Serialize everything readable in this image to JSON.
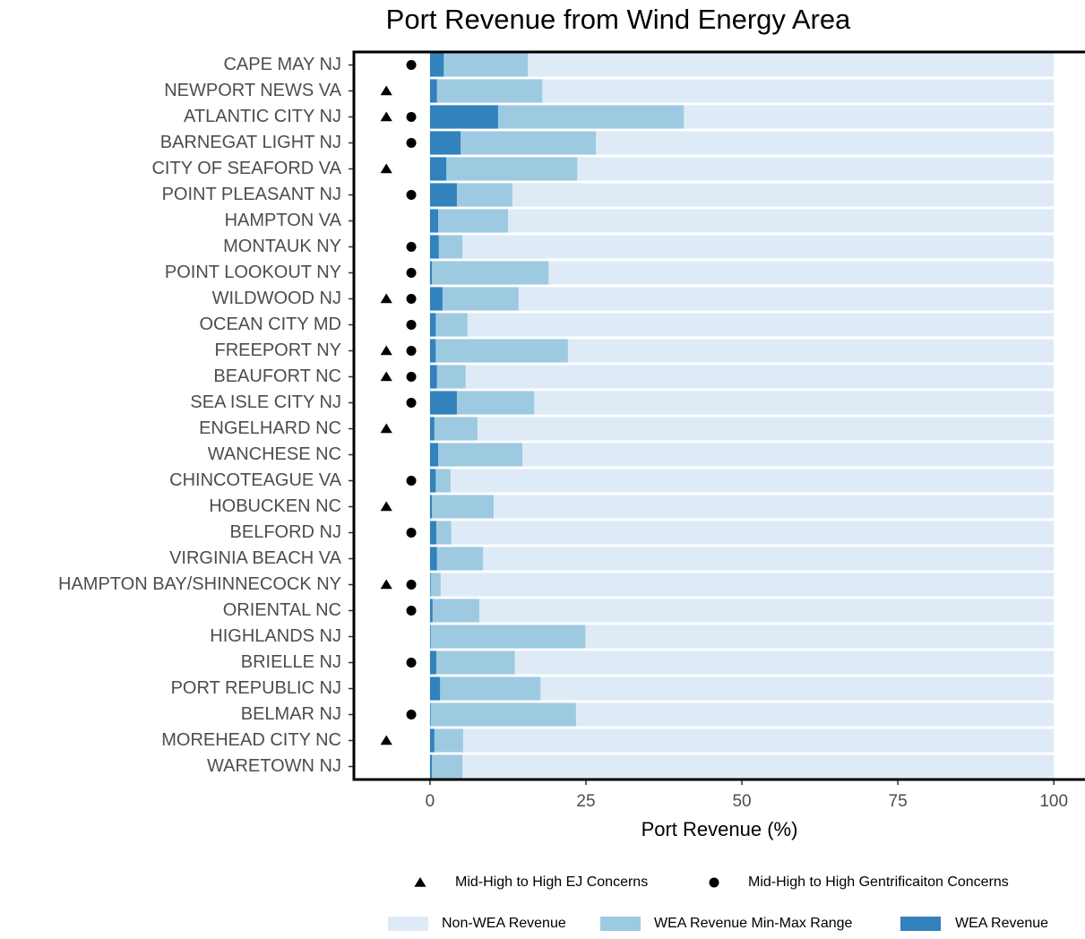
{
  "chart_data": {
    "type": "bar",
    "orientation": "horizontal",
    "overlap": true,
    "title": "Port Revenue from Wind Energy Area",
    "x_label": "Port Revenue (%)",
    "categories": [
      "CAPE MAY NJ",
      "NEWPORT NEWS VA",
      "ATLANTIC CITY NJ",
      "BARNEGAT LIGHT NJ",
      "CITY OF SEAFORD VA",
      "POINT PLEASANT NJ",
      "HAMPTON VA",
      "MONTAUK NY",
      "POINT LOOKOUT NY",
      "WILDWOOD NJ",
      "OCEAN CITY MD",
      "FREEPORT NY",
      "BEAUFORT NC",
      "SEA ISLE CITY NJ",
      "ENGELHARD NC",
      "WANCHESE NC",
      "CHINCOTEAGUE VA",
      "HOBUCKEN NC",
      "BELFORD NJ",
      "VIRGINIA BEACH VA",
      "HAMPTON BAY/SHINNECOCK NY",
      "ORIENTAL NC",
      "HIGHLANDS NJ",
      "BRIELLE NJ",
      "PORT REPUBLIC NJ",
      "BELMAR NJ",
      "MOREHEAD CITY NC",
      "WARETOWN NJ"
    ],
    "series": [
      {
        "name": "Non-WEA Revenue",
        "color": "#deebf7",
        "values": [
          100,
          100,
          100,
          100,
          100,
          100,
          100,
          100,
          100,
          100,
          100,
          100,
          100,
          100,
          100,
          100,
          100,
          100,
          100,
          100,
          100,
          100,
          100,
          100,
          100,
          100,
          100,
          100
        ]
      },
      {
        "name": "WEA Revenue Min-Max Range",
        "color": "#9ecae1",
        "values": [
          15.7,
          18.0,
          40.7,
          26.6,
          23.6,
          13.2,
          12.5,
          5.2,
          19.0,
          14.2,
          6.0,
          22.1,
          5.7,
          16.7,
          7.6,
          14.8,
          3.3,
          10.2,
          3.4,
          8.5,
          1.7,
          7.9,
          24.9,
          13.6,
          17.7,
          23.4,
          5.3,
          5.2
        ]
      },
      {
        "name": "WEA Revenue",
        "color": "#3182bd",
        "values": [
          2.2,
          1.1,
          10.9,
          4.9,
          2.6,
          4.3,
          1.3,
          1.4,
          0.3,
          2.0,
          0.9,
          0.9,
          1.1,
          4.3,
          0.7,
          1.3,
          0.9,
          0.3,
          1.0,
          1.1,
          0.1,
          0.4,
          0.1,
          1.0,
          1.6,
          0.1,
          0.7,
          0.3
        ]
      }
    ],
    "markers": [
      {
        "name": "Mid-High to High EJ Concerns",
        "shape": "triangle",
        "color": "#000000",
        "values": [
          null,
          -7,
          -7,
          null,
          -7,
          null,
          null,
          null,
          null,
          -7,
          null,
          -7,
          -7,
          null,
          -7,
          null,
          null,
          -7,
          null,
          null,
          -7,
          null,
          null,
          null,
          null,
          null,
          -7,
          null
        ]
      },
      {
        "name": "Mid-High to High Gentrificaiton Concerns",
        "shape": "circle",
        "color": "#000000",
        "values": [
          -3,
          null,
          -3,
          -3,
          null,
          -3,
          null,
          -3,
          -3,
          -3,
          -3,
          -3,
          -3,
          -3,
          null,
          null,
          -3,
          null,
          -3,
          null,
          -3,
          -3,
          null,
          -3,
          null,
          -3,
          null,
          null
        ]
      }
    ],
    "xlim": [
      -12.2,
      105
    ],
    "xticks": [
      0,
      25,
      50,
      75,
      100
    ]
  }
}
